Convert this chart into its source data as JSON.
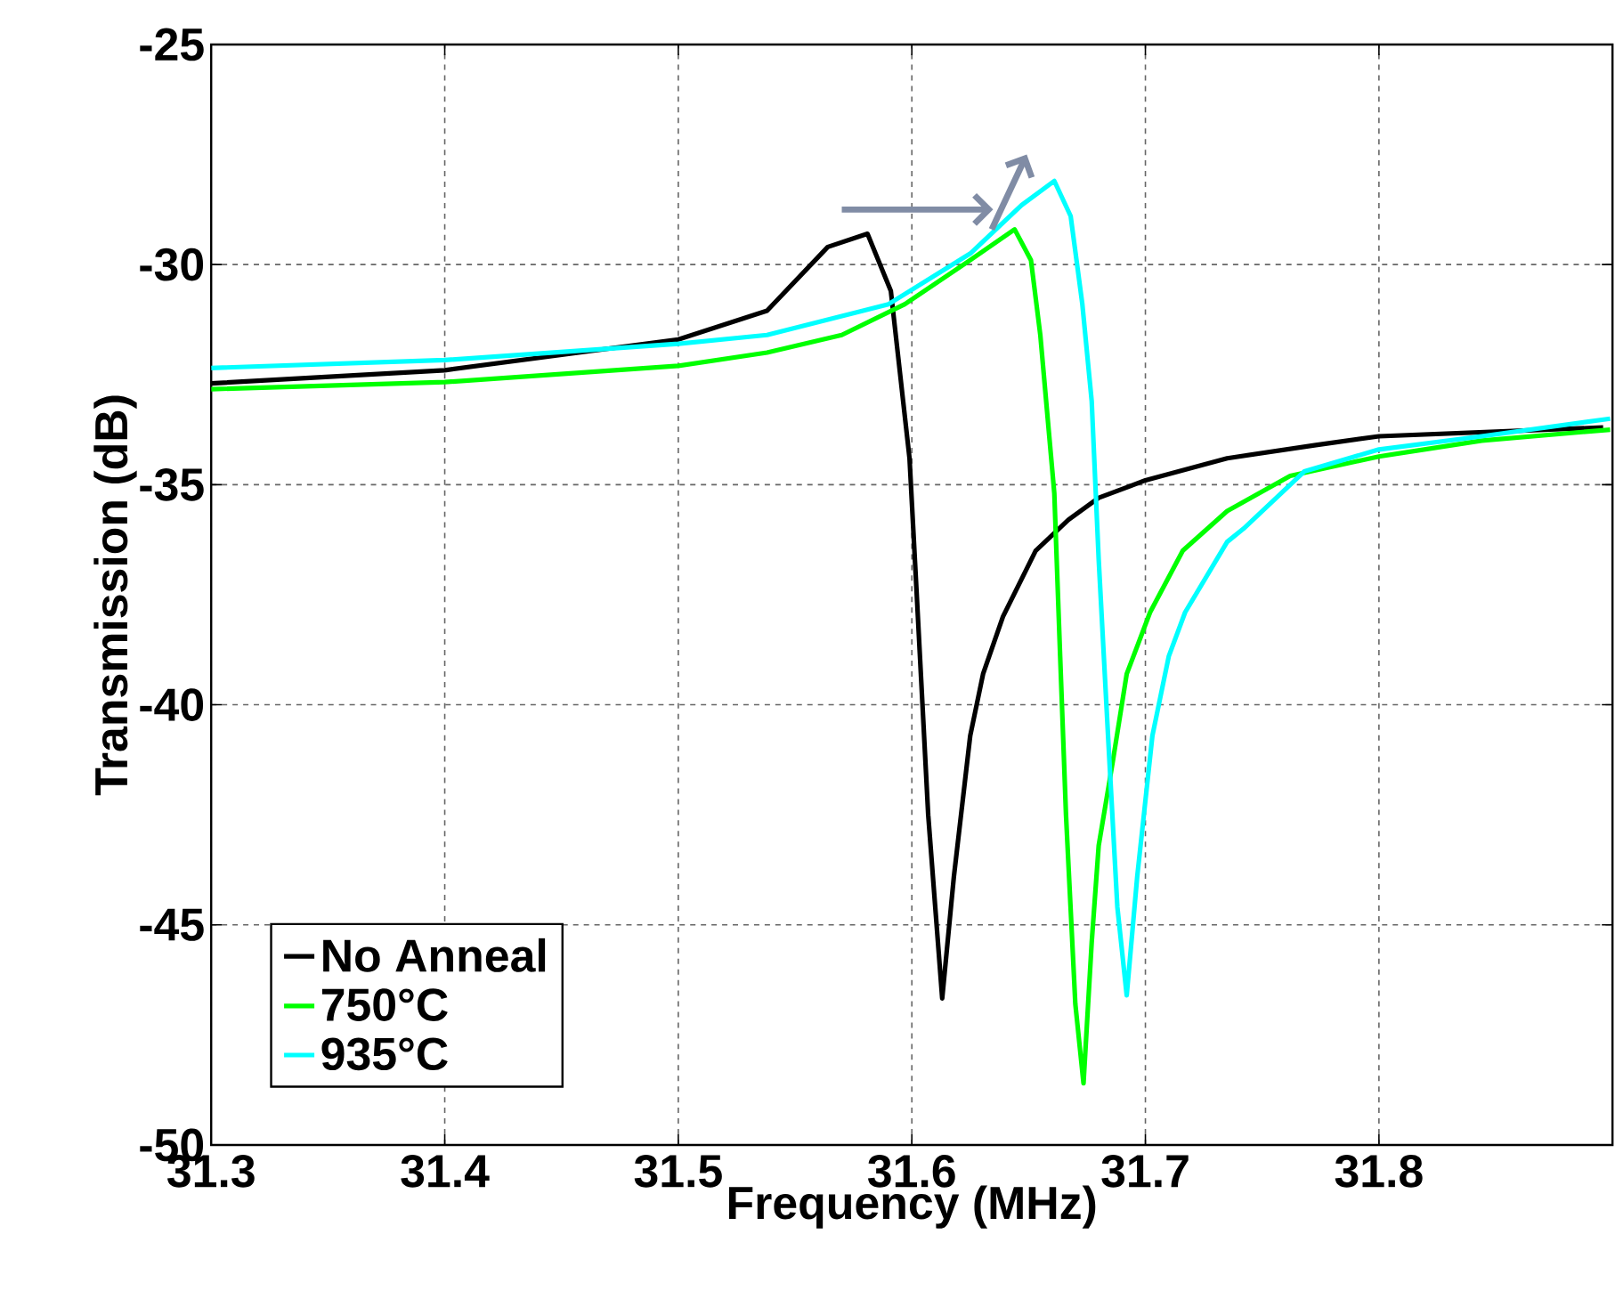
{
  "chart_data": {
    "type": "line",
    "xlabel": "Frequency (MHz)",
    "ylabel": "Transmission (dB)",
    "xlim": [
      31.3,
      31.9
    ],
    "xticks": [
      31.3,
      31.4,
      31.5,
      31.6,
      31.7,
      31.8
    ],
    "ylim": [
      -50,
      -25
    ],
    "yticks": [
      -50,
      -45,
      -40,
      -35,
      -30,
      -25
    ],
    "grid": true,
    "legend": "bottom left",
    "line_style": "solid",
    "series": [
      {
        "name": "No Anneal",
        "color": "#000000",
        "x": [
          31.3,
          31.4,
          31.5,
          31.538,
          31.564,
          31.581,
          31.591,
          31.599,
          31.602,
          31.607,
          31.613,
          31.618,
          31.625,
          31.6305,
          31.639,
          31.653,
          31.667,
          31.68,
          31.7,
          31.735,
          31.773,
          31.8,
          31.896
        ],
        "values": [
          -32.7,
          -32.4,
          -31.7,
          -31.05,
          -29.6,
          -29.3,
          -30.6,
          -34.4,
          -37.4,
          -42.5,
          -46.67,
          -43.9,
          -40.7,
          -39.3,
          -38.0,
          -36.5,
          -35.8,
          -35.3,
          -34.9,
          -34.4,
          -34.1,
          -33.9,
          -33.7
        ]
      },
      {
        "name": "750°C",
        "color": "#00ff00",
        "x": [
          31.3,
          31.4,
          31.5,
          31.538,
          31.57,
          31.597,
          31.625,
          31.644,
          31.651,
          31.655,
          31.661,
          31.6635,
          31.666,
          31.67,
          31.6735,
          31.677,
          31.68,
          31.686,
          31.692,
          31.702,
          31.716,
          31.735,
          31.762,
          31.8,
          31.844,
          31.899
        ],
        "values": [
          -32.83,
          -32.67,
          -32.3,
          -32.0,
          -31.6,
          -30.9,
          -29.9,
          -29.2,
          -29.9,
          -31.6,
          -35.2,
          -38.9,
          -42.5,
          -46.8,
          -48.6,
          -45.4,
          -43.2,
          -41.3,
          -39.3,
          -37.9,
          -36.5,
          -35.6,
          -34.8,
          -34.36,
          -34.0,
          -33.75
        ]
      },
      {
        "name": "935°C",
        "color": "#00ffff",
        "x": [
          31.3,
          31.4,
          31.5,
          31.538,
          31.59,
          31.625,
          31.647,
          31.661,
          31.668,
          31.673,
          31.677,
          31.68,
          31.684,
          31.688,
          31.692,
          31.6965,
          31.703,
          31.71,
          31.717,
          31.735,
          31.742,
          31.768,
          31.8,
          31.844,
          31.899
        ],
        "values": [
          -32.35,
          -32.17,
          -31.8,
          -31.6,
          -30.9,
          -29.75,
          -28.65,
          -28.1,
          -28.9,
          -30.9,
          -33.1,
          -36.7,
          -40.7,
          -44.6,
          -46.6,
          -43.9,
          -40.7,
          -38.9,
          -37.9,
          -36.3,
          -36.0,
          -34.7,
          -34.2,
          -33.9,
          -33.5
        ]
      }
    ]
  }
}
